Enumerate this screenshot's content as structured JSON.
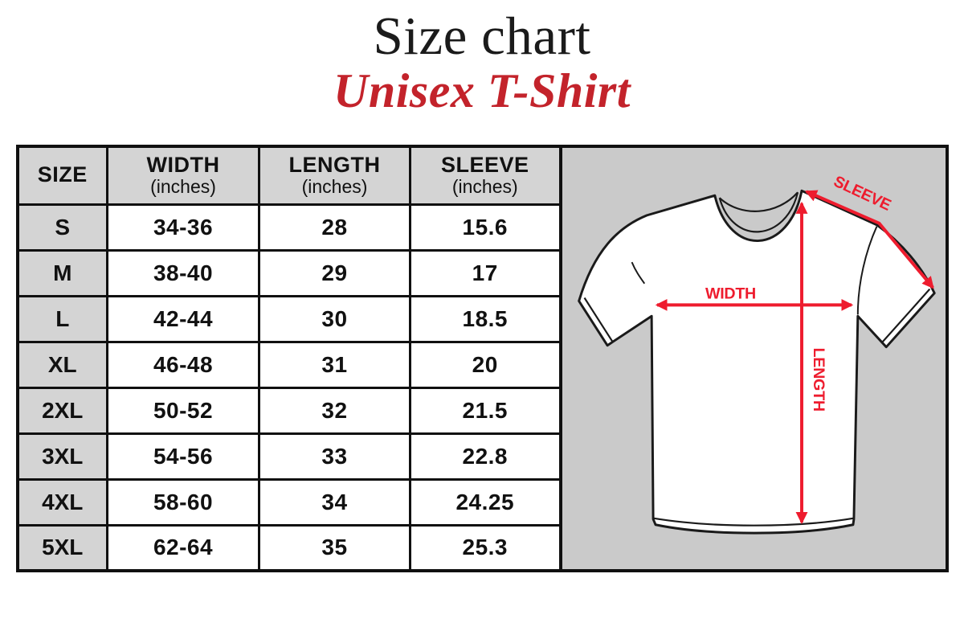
{
  "page": {
    "title": "Size chart",
    "subtitle": "Unisex T-Shirt"
  },
  "colors": {
    "title_black": "#1b1b1b",
    "subtitle_red": "#c3232b",
    "arrow_red": "#ee1c2e",
    "table_header_gray": "#d4d4d4",
    "panel_gray": "#cacaca",
    "border_black": "#101010",
    "shirt_fill": "#ffffff",
    "shirt_outline": "#1a1a1a"
  },
  "size_table": {
    "columns": [
      {
        "label": "SIZE",
        "sub": ""
      },
      {
        "label": "WIDTH",
        "sub": "(inches)"
      },
      {
        "label": "LENGTH",
        "sub": "(inches)"
      },
      {
        "label": "SLEEVE",
        "sub": "(inches)"
      }
    ],
    "rows": [
      {
        "size": "S",
        "width": "34-36",
        "length": "28",
        "sleeve": "15.6"
      },
      {
        "size": "M",
        "width": "38-40",
        "length": "29",
        "sleeve": "17"
      },
      {
        "size": "L",
        "width": "42-44",
        "length": "30",
        "sleeve": "18.5"
      },
      {
        "size": "XL",
        "width": "46-48",
        "length": "31",
        "sleeve": "20"
      },
      {
        "size": "2XL",
        "width": "50-52",
        "length": "32",
        "sleeve": "21.5"
      },
      {
        "size": "3XL",
        "width": "54-56",
        "length": "33",
        "sleeve": "22.8"
      },
      {
        "size": "4XL",
        "width": "58-60",
        "length": "34",
        "sleeve": "24.25"
      },
      {
        "size": "5XL",
        "width": "62-64",
        "length": "35",
        "sleeve": "25.3"
      }
    ]
  },
  "diagram": {
    "labels": {
      "width": "WIDTH",
      "length": "LENGTH",
      "sleeve": "SLEEVE"
    }
  }
}
